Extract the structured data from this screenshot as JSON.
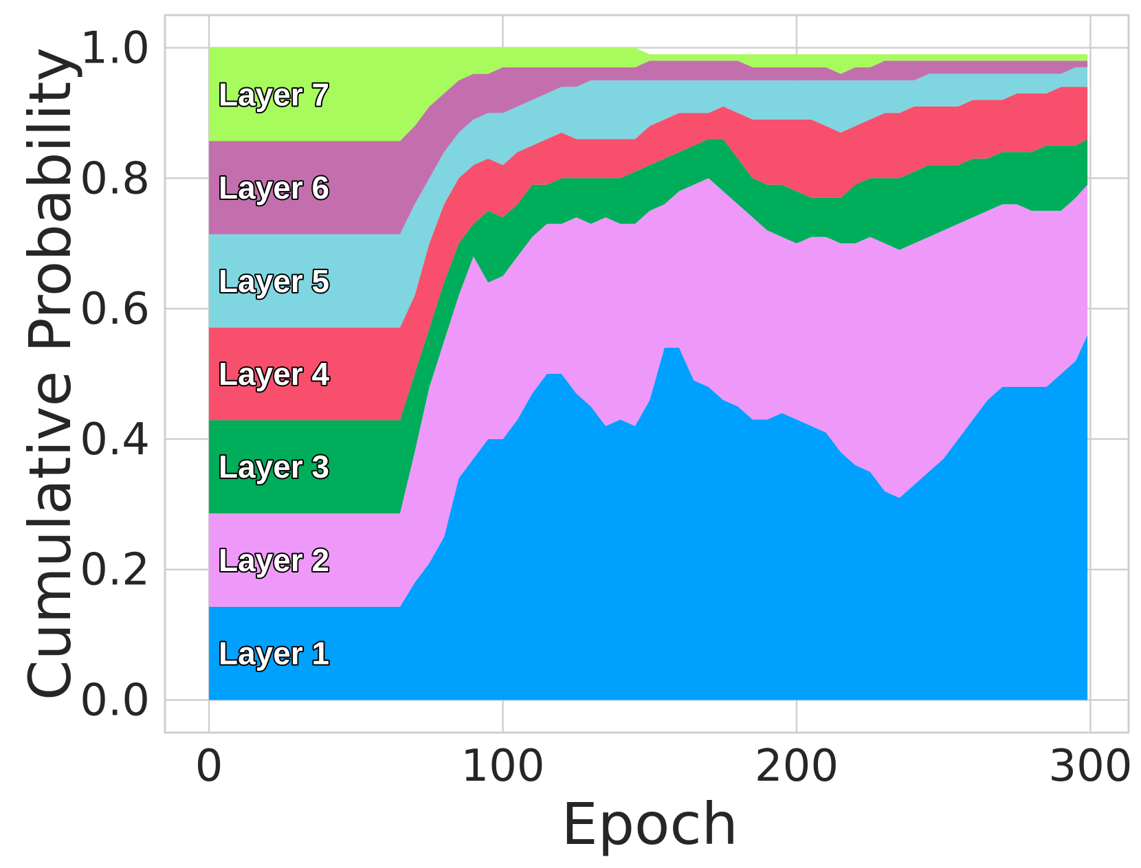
{
  "chart_data": {
    "type": "area",
    "stacked": true,
    "title": "",
    "xlabel": "Epoch",
    "ylabel": "Cumulative Probability",
    "xlim": [
      -15,
      313
    ],
    "ylim": [
      -0.05,
      1.05
    ],
    "xticks": [
      0,
      100,
      200,
      300
    ],
    "xtick_labels": [
      "0",
      "100",
      "200",
      "300"
    ],
    "yticks": [
      0.0,
      0.2,
      0.4,
      0.6,
      0.8,
      1.0
    ],
    "ytick_labels": [
      "0.0",
      "0.2",
      "0.4",
      "0.6",
      "0.8",
      "1.0"
    ],
    "grid": true,
    "legend": "inline labels at left",
    "x": [
      0,
      65,
      70,
      75,
      80,
      85,
      90,
      95,
      100,
      105,
      110,
      115,
      120,
      125,
      130,
      135,
      140,
      145,
      150,
      155,
      160,
      165,
      170,
      175,
      180,
      185,
      190,
      195,
      200,
      205,
      210,
      215,
      220,
      225,
      230,
      235,
      240,
      245,
      250,
      255,
      260,
      265,
      270,
      275,
      280,
      285,
      290,
      295,
      299
    ],
    "cumulative_upper": [
      {
        "name": "Layer 1",
        "color": "#00a0ff",
        "values": [
          0.143,
          0.143,
          0.18,
          0.21,
          0.25,
          0.34,
          0.37,
          0.4,
          0.4,
          0.43,
          0.47,
          0.5,
          0.5,
          0.47,
          0.45,
          0.42,
          0.43,
          0.42,
          0.46,
          0.54,
          0.54,
          0.49,
          0.48,
          0.46,
          0.45,
          0.43,
          0.43,
          0.44,
          0.43,
          0.42,
          0.41,
          0.38,
          0.36,
          0.35,
          0.32,
          0.31,
          0.33,
          0.35,
          0.37,
          0.4,
          0.43,
          0.46,
          0.48,
          0.48,
          0.48,
          0.48,
          0.5,
          0.52,
          0.56
        ]
      },
      {
        "name": "Layer 2",
        "color": "#ee99fa",
        "values": [
          0.286,
          0.286,
          0.38,
          0.48,
          0.55,
          0.62,
          0.68,
          0.64,
          0.65,
          0.68,
          0.71,
          0.73,
          0.73,
          0.74,
          0.73,
          0.74,
          0.73,
          0.73,
          0.75,
          0.76,
          0.78,
          0.79,
          0.8,
          0.78,
          0.76,
          0.74,
          0.72,
          0.71,
          0.7,
          0.71,
          0.71,
          0.7,
          0.7,
          0.71,
          0.7,
          0.69,
          0.7,
          0.71,
          0.72,
          0.73,
          0.74,
          0.75,
          0.76,
          0.76,
          0.75,
          0.75,
          0.75,
          0.77,
          0.79
        ]
      },
      {
        "name": "Layer 3",
        "color": "#00ad5a",
        "values": [
          0.429,
          0.429,
          0.5,
          0.57,
          0.64,
          0.7,
          0.73,
          0.75,
          0.74,
          0.76,
          0.79,
          0.79,
          0.8,
          0.8,
          0.8,
          0.8,
          0.8,
          0.81,
          0.82,
          0.83,
          0.84,
          0.85,
          0.86,
          0.86,
          0.83,
          0.8,
          0.79,
          0.79,
          0.78,
          0.77,
          0.77,
          0.77,
          0.79,
          0.8,
          0.8,
          0.8,
          0.81,
          0.82,
          0.82,
          0.82,
          0.83,
          0.83,
          0.84,
          0.84,
          0.84,
          0.85,
          0.85,
          0.85,
          0.86
        ]
      },
      {
        "name": "Layer 4",
        "color": "#f74f6c",
        "values": [
          0.571,
          0.571,
          0.62,
          0.7,
          0.76,
          0.8,
          0.82,
          0.83,
          0.82,
          0.84,
          0.85,
          0.86,
          0.87,
          0.86,
          0.86,
          0.86,
          0.86,
          0.86,
          0.88,
          0.89,
          0.9,
          0.9,
          0.9,
          0.91,
          0.9,
          0.89,
          0.89,
          0.89,
          0.89,
          0.89,
          0.88,
          0.87,
          0.88,
          0.89,
          0.9,
          0.9,
          0.91,
          0.91,
          0.91,
          0.91,
          0.92,
          0.92,
          0.92,
          0.93,
          0.93,
          0.93,
          0.94,
          0.94,
          0.94
        ]
      },
      {
        "name": "Layer 5",
        "color": "#7fd5e0",
        "values": [
          0.714,
          0.714,
          0.76,
          0.8,
          0.84,
          0.87,
          0.89,
          0.9,
          0.9,
          0.91,
          0.92,
          0.93,
          0.94,
          0.94,
          0.95,
          0.95,
          0.95,
          0.95,
          0.95,
          0.95,
          0.95,
          0.95,
          0.95,
          0.95,
          0.95,
          0.95,
          0.95,
          0.95,
          0.95,
          0.95,
          0.95,
          0.95,
          0.95,
          0.95,
          0.95,
          0.95,
          0.95,
          0.96,
          0.96,
          0.96,
          0.96,
          0.96,
          0.96,
          0.96,
          0.96,
          0.96,
          0.96,
          0.97,
          0.97
        ]
      },
      {
        "name": "Layer 6",
        "color": "#c36fae",
        "values": [
          0.857,
          0.857,
          0.88,
          0.91,
          0.93,
          0.95,
          0.96,
          0.96,
          0.97,
          0.97,
          0.97,
          0.97,
          0.97,
          0.97,
          0.97,
          0.97,
          0.97,
          0.97,
          0.98,
          0.98,
          0.98,
          0.98,
          0.98,
          0.98,
          0.98,
          0.97,
          0.97,
          0.97,
          0.97,
          0.97,
          0.97,
          0.96,
          0.97,
          0.97,
          0.98,
          0.98,
          0.98,
          0.98,
          0.98,
          0.98,
          0.98,
          0.98,
          0.98,
          0.98,
          0.98,
          0.98,
          0.98,
          0.98,
          0.98
        ]
      },
      {
        "name": "Layer 7",
        "color": "#a8fb5c",
        "values": [
          1.0,
          1.0,
          1.0,
          1.0,
          1.0,
          1.0,
          1.0,
          1.0,
          1.0,
          1.0,
          1.0,
          1.0,
          1.0,
          1.0,
          1.0,
          1.0,
          1.0,
          1.0,
          0.99,
          0.99,
          0.99,
          0.99,
          0.99,
          0.99,
          0.99,
          0.99,
          0.99,
          0.99,
          0.99,
          0.99,
          0.99,
          0.99,
          0.99,
          0.99,
          0.99,
          0.99,
          0.99,
          0.99,
          0.99,
          0.99,
          0.99,
          0.99,
          0.99,
          0.99,
          0.99,
          0.99,
          0.99,
          0.99,
          0.99
        ]
      }
    ]
  }
}
